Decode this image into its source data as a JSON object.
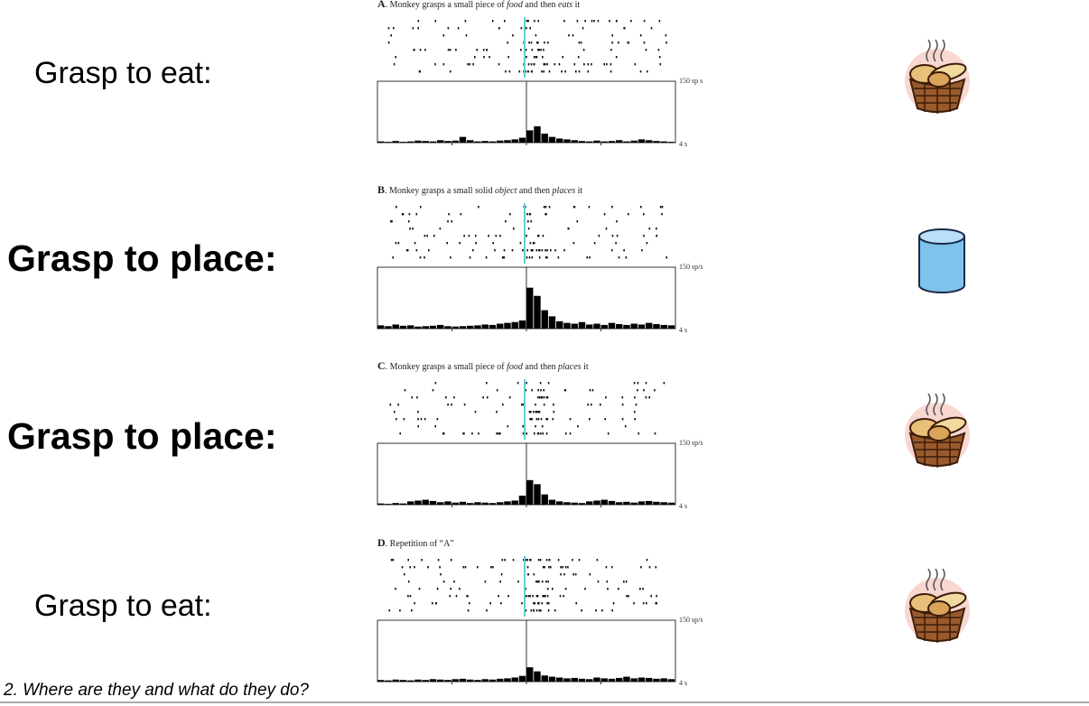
{
  "panels": [
    {
      "label": "Grasp to eat:",
      "letter": "A",
      "title": [
        {
          "text": ". Monkey grasps a small piece of ",
          "italic": false
        },
        {
          "text": "food",
          "italic": true
        },
        {
          "text": " and then ",
          "italic": false
        },
        {
          "text": "eats",
          "italic": true
        },
        {
          "text": " it",
          "italic": false
        }
      ],
      "scale_top": "150 sp s",
      "scale_bottom": "4 s",
      "histogram": {
        "ylim": [
          0,
          150
        ],
        "values": [
          3,
          2,
          4,
          2,
          3,
          5,
          4,
          3,
          6,
          4,
          5,
          14,
          6,
          3,
          4,
          3,
          5,
          6,
          8,
          12,
          30,
          40,
          22,
          14,
          10,
          8,
          6,
          4,
          3,
          5,
          3,
          4,
          6,
          3,
          5,
          8,
          6,
          4,
          3,
          2
        ]
      }
    },
    {
      "label": "Grasp to place:",
      "letter": "B",
      "title": [
        {
          "text": ". Monkey grasps a small solid ",
          "italic": false
        },
        {
          "text": "object",
          "italic": true
        },
        {
          "text": " and then ",
          "italic": false
        },
        {
          "text": "places",
          "italic": true
        },
        {
          "text": " it",
          "italic": false
        }
      ],
      "scale_top": "150 sp/s",
      "scale_bottom": "4 s",
      "histogram": {
        "ylim": [
          0,
          150
        ],
        "values": [
          8,
          6,
          10,
          7,
          8,
          5,
          6,
          7,
          9,
          6,
          5,
          6,
          7,
          8,
          10,
          9,
          12,
          14,
          16,
          20,
          100,
          80,
          45,
          30,
          18,
          14,
          12,
          16,
          10,
          12,
          9,
          14,
          11,
          9,
          12,
          10,
          14,
          11,
          9,
          8
        ]
      }
    },
    {
      "label": "Grasp to place:",
      "letter": "C",
      "title": [
        {
          "text": ". Monkey grasps a small piece of ",
          "italic": false
        },
        {
          "text": "food",
          "italic": true
        },
        {
          "text": " and then ",
          "italic": false
        },
        {
          "text": "places",
          "italic": true
        },
        {
          "text": " it",
          "italic": false
        }
      ],
      "scale_top": "150 sp/s",
      "scale_bottom": "4 s",
      "histogram": {
        "ylim": [
          0,
          150
        ],
        "values": [
          3,
          2,
          4,
          3,
          8,
          10,
          12,
          9,
          6,
          8,
          5,
          7,
          4,
          6,
          5,
          4,
          6,
          8,
          10,
          22,
          60,
          50,
          25,
          12,
          8,
          6,
          5,
          4,
          8,
          10,
          12,
          9,
          6,
          7,
          5,
          8,
          9,
          7,
          6,
          5
        ]
      }
    },
    {
      "label": "Grasp to eat:",
      "letter": "D",
      "title": [
        {
          "text": ". Repetition of “A”",
          "italic": false
        }
      ],
      "scale_top": "150 sp/s",
      "scale_bottom": "4 s",
      "histogram": {
        "ylim": [
          0,
          150
        ],
        "values": [
          4,
          3,
          5,
          4,
          3,
          5,
          4,
          6,
          5,
          4,
          6,
          7,
          5,
          4,
          6,
          5,
          7,
          8,
          10,
          14,
          35,
          25,
          15,
          12,
          10,
          8,
          9,
          7,
          6,
          10,
          8,
          7,
          9,
          12,
          8,
          10,
          9,
          7,
          8,
          6
        ]
      }
    }
  ],
  "footer": "2. Where are they and what do they do?"
}
